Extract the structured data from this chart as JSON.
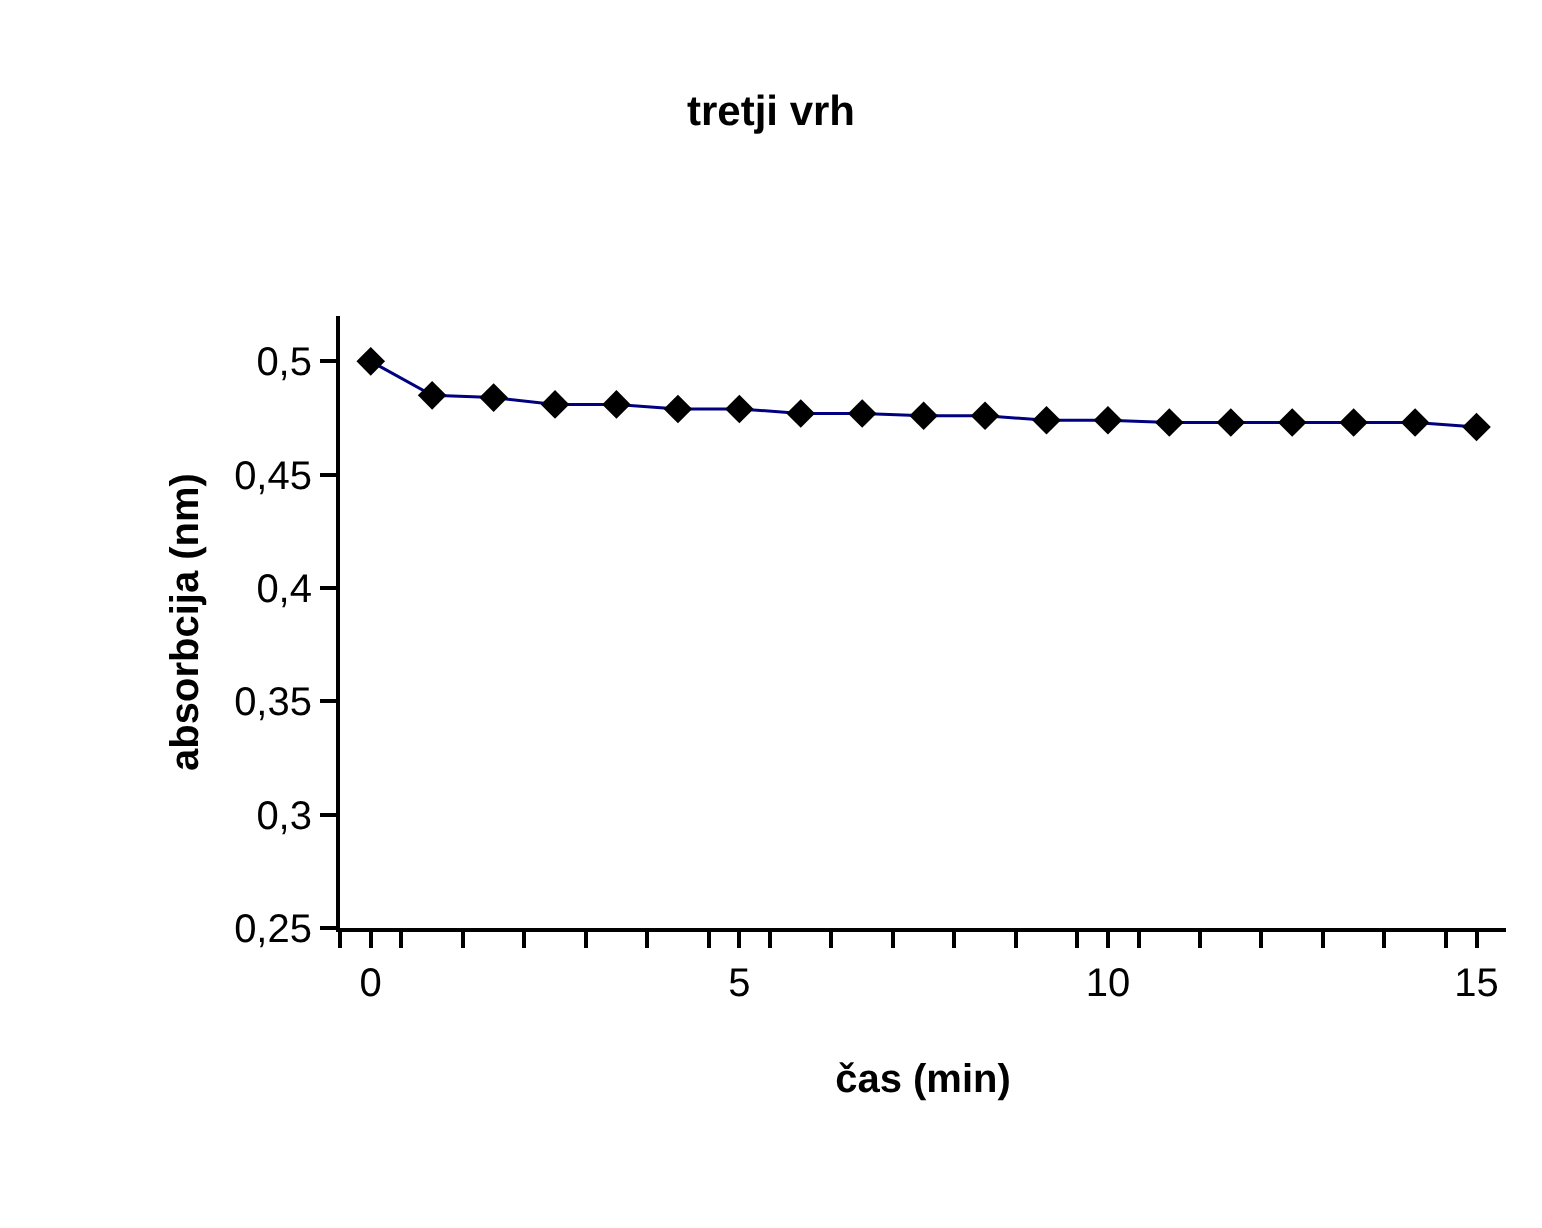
{
  "chart_data": {
    "type": "line",
    "title": "tretji vrh",
    "xlabel": "čas (min)",
    "ylabel": "absorbcija (nm)",
    "x": [
      0,
      0.833,
      1.667,
      2.5,
      3.333,
      4.167,
      5,
      5.833,
      6.667,
      7.5,
      8.333,
      9.167,
      10,
      10.833,
      11.667,
      12.5,
      13.333,
      14.167,
      15
    ],
    "series": [
      {
        "color": "#000080",
        "colors": [
          "#000000",
          "#000000",
          "#000000",
          "#000000",
          "#000000",
          "#000000",
          "#000000",
          "#000000",
          "#000000",
          "#000000",
          "#000000",
          "#000000",
          "#000000",
          "#000000",
          "#000000",
          "#000000",
          "#000000",
          "#000000",
          "#000000"
        ],
        "values": [
          0.5,
          0.485,
          0.484,
          0.481,
          0.481,
          0.479,
          0.479,
          0.477,
          0.477,
          0.476,
          0.476,
          0.474,
          0.474,
          0.473,
          0.473,
          0.473,
          0.473,
          0.473,
          0.471
        ]
      }
    ],
    "xlim": [
      -0.417,
      15.4
    ],
    "xticks": [
      {
        "value": -0.417,
        "label": null
      },
      0,
      {
        "value": 0.417,
        "label": null
      },
      {
        "value": 1.25,
        "label": null
      },
      {
        "value": 2.083,
        "label": null
      },
      {
        "value": 2.917,
        "label": null
      },
      {
        "value": 3.75,
        "label": null
      },
      {
        "value": 4.583,
        "label": null
      },
      5,
      {
        "value": 5.417,
        "label": null
      },
      {
        "value": 6.25,
        "label": null
      },
      {
        "value": 7.083,
        "label": null
      },
      {
        "value": 7.917,
        "label": null
      },
      {
        "value": 8.75,
        "label": null
      },
      {
        "value": 9.583,
        "label": null
      },
      10,
      {
        "value": 10.417,
        "label": null
      },
      {
        "value": 11.25,
        "label": null
      },
      {
        "value": 12.083,
        "label": null
      },
      {
        "value": 12.917,
        "label": null
      },
      {
        "value": 13.75,
        "label": null
      },
      {
        "value": 14.583,
        "label": null
      },
      15
    ],
    "ylim": [
      0.25,
      0.52
    ],
    "yticks": [
      {
        "value": 0.25,
        "label": "0,25"
      },
      {
        "value": 0.3,
        "label": "0,3"
      },
      {
        "value": 0.35,
        "label": "0,35"
      },
      {
        "value": 0.4,
        "label": "0,4"
      },
      {
        "value": 0.45,
        "label": "0,45"
      },
      {
        "value": 0.5,
        "label": "0,5"
      }
    ],
    "marker": "diamond",
    "line_style": "solid"
  }
}
